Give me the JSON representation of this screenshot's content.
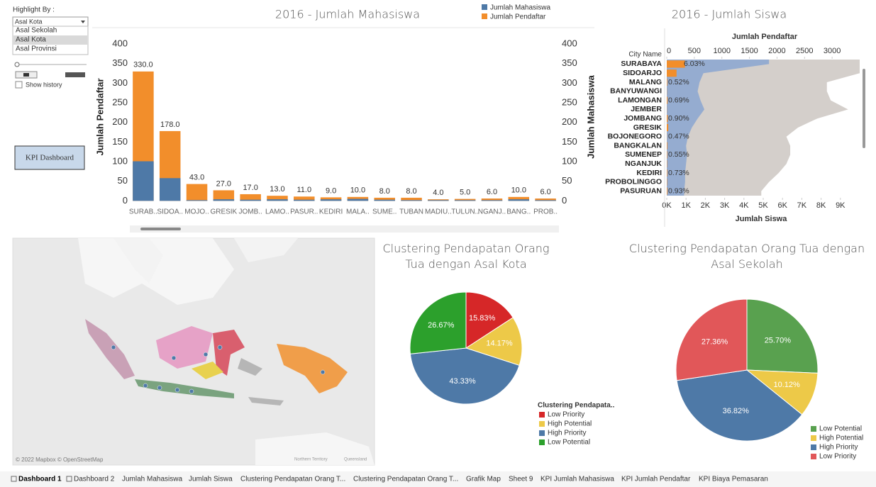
{
  "controls": {
    "highlight_label": "Highlight By :",
    "dropdown_value": "Asal Kota",
    "options": [
      "Asal Sekolah",
      "Asal Kota",
      "Asal Provinsi"
    ],
    "show_history": "Show history",
    "kpi_button": "KPI Dashboard"
  },
  "map": {
    "attribution": "© 2022 Mapbox © OpenStreetMap",
    "labels": [
      "Northern Territory",
      "Queensland"
    ]
  },
  "tabs": [
    "Dashboard 1",
    "Dashboard 2",
    "Jumlah Mahasiswa",
    "Jumlah Siswa",
    "Clustering Pendapatan Orang T...",
    "Clustering Pendapatan Orang T...",
    "Grafik Map",
    "Sheet 9",
    "KPI Jumlah Mahasiswa",
    "KPI Jumlah Pendaftar",
    "KPI Biaya Pemasaran"
  ],
  "chart_data": [
    {
      "type": "bar",
      "title": "2016 - Jumlah Mahasiswa",
      "categories": [
        "SURAB..",
        "SIDOA..",
        "MOJO..",
        "GRESIK",
        "JOMB..",
        "LAMO..",
        "PASUR..",
        "KEDIRI",
        "MALA..",
        "SUME..",
        "TUBAN",
        "MADIU..",
        "TULUN..",
        "NGANJ..",
        "BANG..",
        "PROB.."
      ],
      "series": [
        {
          "name": "Jumlah Mahasiswa",
          "color": "#4e79a7",
          "axis": "y2",
          "values": [
            101,
            58,
            2,
            4,
            3,
            4,
            3,
            4,
            5,
            3,
            2,
            2,
            2,
            2,
            4,
            2
          ]
        },
        {
          "name": "Jumlah Pendaftar",
          "color": "#f28e2b",
          "values": [
            330,
            178,
            43,
            27,
            17,
            13,
            11,
            9,
            10,
            8,
            8,
            4,
            5,
            6,
            10,
            6
          ],
          "value_labels": [
            "330.0",
            "178.0",
            "43.0",
            "27.0",
            "17.0",
            "13.0",
            "11.0",
            "9.0",
            "10.0",
            "8.0",
            "8.0",
            "4.0",
            "5.0",
            "6.0",
            "10.0",
            "6.0"
          ]
        }
      ],
      "y_label": "Jumlah Pendaftar",
      "y2_label": "Jumlah Mahasiswa",
      "ylim": [
        -12,
        440
      ],
      "yticks": [
        0,
        50,
        100,
        150,
        200,
        250,
        300,
        350,
        400
      ],
      "y2lim": [
        -12,
        440
      ],
      "y2ticks": [
        0,
        50,
        100,
        150,
        200,
        250,
        300,
        350,
        400
      ]
    },
    {
      "type": "combo",
      "title": "2016 - Jumlah Siswa",
      "category_label": "City Name",
      "categories": [
        "SURABAYA",
        "SIDOARJO",
        "MALANG",
        "BANYUWANGI",
        "LAMONGAN",
        "JEMBER",
        "JOMBANG",
        "GRESIK",
        "BOJONEGORO",
        "BANGKALAN",
        "SUMENEP",
        "NGANJUK",
        "KEDIRI",
        "PROBOLINGGO",
        "PASURUAN"
      ],
      "labels": [
        "6.03%",
        null,
        "0.52%",
        null,
        "0.69%",
        null,
        "0.90%",
        null,
        "0.47%",
        null,
        "0.55%",
        null,
        "0.73%",
        null,
        "0.93%"
      ],
      "series": [
        {
          "color": "#d4cfcb",
          "values": [
            10000,
            10000,
            8300,
            8300,
            8500,
            9400,
            7800,
            6800,
            6200,
            6400,
            6400,
            6200,
            5800,
            5300,
            4900
          ]
        },
        {
          "name": "Jumlah Siswa",
          "color": "#95acd0",
          "values": [
            5300,
            1900,
            1700,
            1600,
            1750,
            1950,
            1600,
            1300,
            1100,
            1000,
            1050,
            1000,
            950,
            950,
            900
          ]
        },
        {
          "name": "Jumlah Pendaftar",
          "color": "#f28e2b",
          "axis": "x2",
          "values": [
            330,
            178,
            10,
            3,
            13,
            3,
            17,
            27,
            3,
            10,
            8,
            6,
            9,
            6,
            11
          ]
        }
      ],
      "x_label": "Jumlah Siswa",
      "x2_label": "Jumlah Pendaftar",
      "xlim": [
        0,
        10000
      ],
      "xticks": [
        {
          "value": 0,
          "label": "0K"
        },
        {
          "value": 1000,
          "label": "1K"
        },
        {
          "value": 2000,
          "label": "2K"
        },
        {
          "value": 3000,
          "label": "3K"
        },
        {
          "value": 4000,
          "label": "4K"
        },
        {
          "value": 5000,
          "label": "5K"
        },
        {
          "value": 6000,
          "label": "6K"
        },
        {
          "value": 7000,
          "label": "7K"
        },
        {
          "value": 8000,
          "label": "8K"
        },
        {
          "value": 9000,
          "label": "9K"
        }
      ],
      "x2lim": [
        0,
        3500
      ],
      "x2ticks": [
        0,
        500,
        1000,
        1500,
        2000,
        2500,
        3000
      ]
    },
    {
      "type": "pie",
      "title": "Clustering Pendapatan Orang Tua dengan Asal Kota",
      "legend_title": "Clustering Pendapata..",
      "categories": [
        "Low Priority",
        "High Potential",
        "High Priority",
        "Low Potential"
      ],
      "values": [
        15.83,
        14.17,
        43.33,
        26.67
      ],
      "value_labels": [
        "15.83%",
        "14.17%",
        "43.33%",
        "26.67%"
      ],
      "colors": [
        "#d62728",
        "#edc948",
        "#4e79a7",
        "#2ca02c"
      ]
    },
    {
      "type": "pie",
      "title": "Clustering Pendapatan Orang Tua dengan Asal Sekolah",
      "categories": [
        "Low Potential",
        "High Potential",
        "High Priority",
        "Low Priority"
      ],
      "values": [
        25.7,
        10.12,
        36.82,
        27.36
      ],
      "value_labels": [
        "25.70%",
        "10.12%",
        "36.82%",
        "27.36%"
      ],
      "colors": [
        "#59a14f",
        "#edc948",
        "#4e79a7",
        "#e15759"
      ]
    }
  ]
}
